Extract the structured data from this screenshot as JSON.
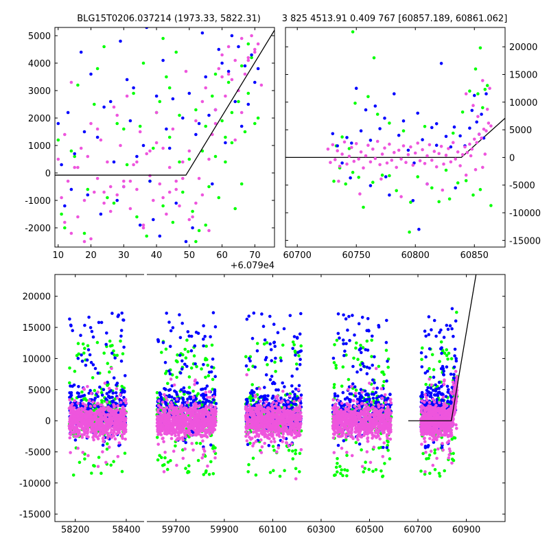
{
  "titles": {
    "left": "BLG15T0206.037214 (1973.33, 5822.31)",
    "right": "3 825 4513.91 0.409 767 [60857.189, 60861.062]"
  },
  "colors": {
    "green": "#00ff00",
    "blue": "#0000ff",
    "magenta": "#ee55dd",
    "line": "#000000"
  },
  "chart_data": [
    {
      "panel": "top-left",
      "type": "scatter",
      "x_offset_label": "+6.079e4",
      "xlim": [
        9,
        76
      ],
      "ylim": [
        -2700,
        5300
      ],
      "x_ticks": [
        10,
        20,
        30,
        40,
        50,
        60,
        70
      ],
      "y_ticks": [
        -2000,
        -1000,
        0,
        1000,
        2000,
        3000,
        4000,
        5000
      ],
      "y_axis_side": "left",
      "model_line": {
        "x": [
          9,
          49,
          76
        ],
        "y": [
          -80,
          -80,
          5200
        ]
      },
      "series": [
        {
          "name": "green",
          "color": "#00ff00",
          "x": [
            10,
            11,
            14,
            16,
            18,
            21,
            24,
            25,
            28,
            31,
            33,
            34,
            36,
            38,
            39,
            41,
            42,
            43,
            44,
            45,
            46,
            47,
            48,
            50,
            51,
            52,
            53,
            54,
            55,
            56,
            57,
            58,
            59,
            60,
            61,
            62,
            63,
            64,
            65,
            66,
            67,
            68,
            69,
            70,
            12,
            15,
            19,
            22,
            27,
            30,
            35,
            37,
            40,
            42,
            44,
            47,
            52,
            55,
            58,
            61,
            63,
            66,
            68,
            71
          ],
          "y": [
            1200,
            -1500,
            800,
            3200,
            -2200,
            2500,
            4600,
            -900,
            1800,
            300,
            2900,
            -1600,
            4000,
            -300,
            900,
            2600,
            -1200,
            3500,
            1300,
            -1800,
            4400,
            2100,
            -700,
            500,
            -1400,
            2300,
            -2100,
            800,
            1700,
            -500,
            2800,
            600,
            -900,
            1900,
            400,
            3300,
            1100,
            -1300,
            2600,
            3900,
            1500,
            2900,
            4200,
            1800,
            -2000,
            600,
            -600,
            3800,
            -1100,
            1600,
            1700,
            -2300,
            2200,
            4900,
            3100,
            400,
            -2500,
            -1900,
            3600,
            1300,
            2200,
            -400,
            4700,
            2000
          ]
        },
        {
          "name": "blue",
          "color": "#0000ff",
          "x": [
            10,
            12,
            13,
            15,
            17,
            19,
            20,
            22,
            23,
            26,
            27,
            29,
            30,
            32,
            33,
            35,
            36,
            37,
            38,
            40,
            41,
            43,
            44,
            46,
            48,
            50,
            51,
            52,
            54,
            55,
            57,
            58,
            60,
            61,
            62,
            64,
            65,
            66,
            67,
            68,
            69,
            70,
            11,
            14,
            18,
            24,
            28,
            31,
            34,
            39,
            42,
            45,
            49,
            53,
            56,
            59,
            63,
            71
          ],
          "y": [
            1800,
            -1200,
            2200,
            700,
            4400,
            -800,
            3600,
            1300,
            -1500,
            2600,
            400,
            4800,
            -500,
            1900,
            3100,
            -1900,
            1000,
            5300,
            -300,
            2800,
            -2300,
            1600,
            900,
            -1100,
            2000,
            2900,
            -2000,
            1400,
            5100,
            3500,
            -400,
            2300,
            4000,
            1100,
            3700,
            2600,
            4600,
            1700,
            3900,
            2500,
            4300,
            3300,
            300,
            -600,
            1500,
            2400,
            -1000,
            3400,
            600,
            -1700,
            4100,
            2700,
            -2500,
            1800,
            2100,
            4500,
            5000,
            3800
          ]
        },
        {
          "name": "magenta",
          "color": "#ee55dd",
          "x": [
            10,
            11,
            12,
            13,
            14,
            15,
            16,
            17,
            18,
            19,
            20,
            21,
            22,
            23,
            24,
            25,
            26,
            27,
            28,
            29,
            30,
            31,
            32,
            33,
            34,
            35,
            36,
            37,
            38,
            39,
            40,
            41,
            42,
            43,
            44,
            45,
            46,
            47,
            48,
            49,
            50,
            51,
            52,
            53,
            54,
            55,
            56,
            57,
            58,
            59,
            60,
            61,
            62,
            63,
            64,
            65,
            66,
            67,
            68,
            69,
            70,
            71,
            72,
            12,
            16,
            20,
            24,
            28,
            32,
            36,
            40,
            44,
            48,
            52,
            56,
            60,
            64,
            68,
            14,
            18,
            22,
            26,
            30,
            34,
            38,
            42,
            46,
            50,
            54,
            58,
            62,
            66,
            70
          ],
          "y": [
            500,
            -900,
            1400,
            -300,
            3300,
            200,
            -1600,
            900,
            -2500,
            600,
            1800,
            -700,
            -200,
            1200,
            -1100,
            400,
            -500,
            2400,
            -800,
            1000,
            -300,
            2800,
            -1300,
            300,
            -600,
            1500,
            -1900,
            700,
            -100,
            -1000,
            2200,
            -400,
            900,
            -1500,
            200,
            1600,
            -600,
            -1200,
            -200,
            3700,
            800,
            -1600,
            1900,
            -200,
            2600,
            3100,
            -2100,
            1400,
            2300,
            3800,
            4300,
            2800,
            4600,
            3400,
            4100,
            3000,
            4900,
            3600,
            4200,
            5000,
            4500,
            4700,
            3200,
            -1800,
            200,
            -2400,
            -700,
            2100,
            -300,
            -2000,
            1100,
            -700,
            400,
            -1100,
            500,
            3500,
            1200,
            4100,
            -2200,
            -1000,
            1600,
            -1400,
            -500,
            400,
            800,
            -900,
            -300,
            -1700,
            -800,
            1800,
            3600,
            2200,
            4400
          ]
        }
      ]
    },
    {
      "panel": "top-right",
      "type": "scatter",
      "xlim": [
        60690,
        60876
      ],
      "ylim": [
        -16200,
        23500
      ],
      "x_ticks": [
        60700,
        60750,
        60800,
        60850
      ],
      "y_ticks": [
        -15000,
        -10000,
        -5000,
        0,
        5000,
        10000,
        15000,
        20000
      ],
      "y_axis_side": "right",
      "model_line": {
        "x": [
          60690,
          60839,
          60876
        ],
        "y": [
          0,
          0,
          7100
        ]
      },
      "series": [
        {
          "name": "green",
          "color": "#00ff00",
          "x": [
            60731,
            60733,
            60736,
            60738,
            60741,
            60744,
            60747,
            60749,
            60752,
            60756,
            60760,
            60764,
            60768,
            60772,
            60778,
            60784,
            60790,
            60796,
            60802,
            60808,
            60814,
            60820,
            60826,
            60832,
            60836,
            60840,
            60843,
            60846,
            60849,
            60851,
            60853,
            60855,
            60857,
            60859,
            60861,
            60864,
            60747,
            60765,
            60778,
            60795,
            60829,
            60855
          ],
          "y": [
            -4300,
            2100,
            -1900,
            3700,
            -4800,
            1600,
            -2700,
            9800,
            -3600,
            -9000,
            11000,
            -4500,
            7800,
            -3200,
            6200,
            -6000,
            4800,
            -8100,
            -3500,
            5600,
            -5500,
            -8000,
            -2300,
            4400,
            -4600,
            8200,
            -4200,
            12000,
            -6800,
            16000,
            11500,
            19800,
            9000,
            12300,
            13000,
            -8700,
            22700,
            18000,
            -3300,
            -13500,
            -7500,
            -5800
          ]
        },
        {
          "name": "blue",
          "color": "#0000ff",
          "x": [
            60730,
            60734,
            60738,
            60742,
            60746,
            60750,
            60754,
            60758,
            60762,
            60766,
            60770,
            60774,
            60778,
            60782,
            60786,
            60790,
            60794,
            60798,
            60802,
            60806,
            60810,
            60814,
            60818,
            60822,
            60826,
            60830,
            60834,
            60838,
            60842,
            60846,
            60848,
            60850,
            60852,
            60854,
            60856,
            60858,
            60860,
            60745,
            60762,
            60775,
            60803,
            60818,
            60833,
            60799
          ],
          "y": [
            4300,
            2100,
            -1000,
            3600,
            2600,
            12500,
            4800,
            8600,
            3100,
            9300,
            5200,
            7100,
            -6800,
            11500,
            4000,
            6600,
            1300,
            -7800,
            8000,
            3200,
            -4800,
            5400,
            6100,
            17000,
            3800,
            1900,
            -5500,
            3900,
            2100,
            5300,
            8500,
            11200,
            6400,
            4200,
            7800,
            3500,
            11500,
            -3700,
            -5100,
            -3500,
            -13000,
            2200,
            5500,
            -1000
          ]
        },
        {
          "name": "magenta",
          "color": "#ee55dd",
          "x": [
            60726,
            60728,
            60730,
            60732,
            60734,
            60736,
            60738,
            60740,
            60742,
            60744,
            60746,
            60748,
            60750,
            60752,
            60754,
            60756,
            60758,
            60760,
            60762,
            60764,
            60766,
            60768,
            60770,
            60772,
            60774,
            60776,
            60778,
            60780,
            60782,
            60784,
            60786,
            60788,
            60790,
            60792,
            60794,
            60796,
            60798,
            60800,
            60802,
            60804,
            60806,
            60808,
            60810,
            60812,
            60814,
            60816,
            60818,
            60820,
            60822,
            60824,
            60826,
            60828,
            60830,
            60832,
            60834,
            60836,
            60838,
            60840,
            60842,
            60844,
            60846,
            60848,
            60850,
            60852,
            60854,
            60856,
            60858,
            60860,
            60862,
            60864,
            60843,
            60849,
            60853,
            60857,
            60861,
            60863,
            60823,
            60810,
            60788,
            60771,
            60753,
            60735,
            60843,
            60851,
            60857,
            60859,
            60847
          ],
          "y": [
            1500,
            -900,
            2300,
            -400,
            1200,
            -1600,
            600,
            2800,
            -1200,
            200,
            1800,
            -700,
            2500,
            -300,
            1000,
            -1900,
            300,
            2200,
            -800,
            1500,
            -200,
            2900,
            -1300,
            600,
            1700,
            -1000,
            2400,
            -500,
            900,
            -1800,
            1300,
            -300,
            2100,
            -900,
            500,
            1900,
            -1400,
            800,
            2600,
            -600,
            1400,
            -1100,
            300,
            2300,
            -500,
            1100,
            -1700,
            700,
            2000,
            -1200,
            400,
            1600,
            -800,
            2700,
            -300,
            1000,
            -1500,
            500,
            1900,
            900,
            2400,
            1500,
            3300,
            2700,
            4200,
            3500,
            5100,
            4800,
            6200,
            5700,
            11500,
            9400,
            7400,
            13900,
            8700,
            12500,
            -5900,
            -4800,
            -7100,
            -3900,
            -6600,
            -4300,
            -3200,
            -2200,
            -1800,
            600,
            300
          ]
        }
      ]
    },
    {
      "panel": "bottom",
      "type": "scatter",
      "x_ticks": [
        58200,
        58400,
        59700,
        59900,
        60100,
        60300,
        60500,
        60700,
        60900
      ],
      "ylim": [
        -16200,
        23500
      ],
      "y_ticks": [
        -15000,
        -10000,
        -5000,
        0,
        5000,
        10000,
        15000,
        20000
      ],
      "y_axis_side": "left",
      "axis_break": "between 58400 and 59700",
      "segments": [
        {
          "xlim": [
            58120,
            58470
          ]
        },
        {
          "xlim": [
            59580,
            61060
          ]
        }
      ],
      "model_line": {
        "x": [
          60660,
          60838,
          60940
        ],
        "y": [
          0,
          0,
          23500
        ]
      },
      "observing_seasons": [
        {
          "range": [
            58176,
            58400
          ]
        },
        {
          "range": [
            59622,
            59866
          ]
        },
        {
          "range": [
            59988,
            60218
          ]
        },
        {
          "range": [
            60348,
            60590
          ]
        },
        {
          "range": [
            60712,
            60862
          ]
        }
      ],
      "series": [
        {
          "name": "green",
          "color": "#00ff00",
          "spread": [
            -9000,
            13000
          ]
        },
        {
          "name": "blue",
          "color": "#0000ff",
          "spread": [
            -6000,
            16000
          ]
        },
        {
          "name": "magenta",
          "color": "#ee55dd",
          "spread": [
            -3500,
            4000
          ]
        }
      ]
    }
  ]
}
